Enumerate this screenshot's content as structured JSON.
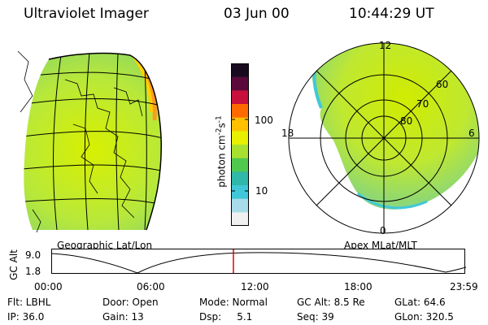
{
  "header": {
    "instrument": "Ultraviolet Imager",
    "date": "03 Jun 00",
    "time": "10:44:29 UT"
  },
  "colorbar": {
    "unit_label": "photon cm",
    "unit_sup1": "-2",
    "unit_mid": "s",
    "unit_sup2": "-1",
    "ticks": [
      "100",
      "10"
    ],
    "colors": [
      "#1a0a20",
      "#5a0a3a",
      "#c8103c",
      "#ff6a00",
      "#ffc000",
      "#e8f000",
      "#a8e030",
      "#50c850",
      "#30b8a8",
      "#40c8d8",
      "#a8dce8",
      "#f0f0f0"
    ]
  },
  "geo_panel": {
    "label": "Geographic Lat/Lon"
  },
  "polar_panel": {
    "label": "Apex MLat/MLT",
    "mlt_labels": {
      "top": "12",
      "left": "18",
      "right": "6",
      "bottom": "0"
    },
    "lat_labels": [
      "60",
      "70",
      "80"
    ]
  },
  "altitude_plot": {
    "ylabel": "GC Alt",
    "yticks": [
      "9.0",
      "1.8"
    ],
    "xticks": [
      "00:00",
      "06:00",
      "12:00",
      "18:00",
      "23:59"
    ],
    "marker_color": "#e00000"
  },
  "info": {
    "row1": [
      "Flt: LBHL",
      "Door: Open",
      "Mode: Normal",
      "GC Alt: 8.5 Re",
      "GLat: 64.6"
    ],
    "row2": [
      "IP: 36.0",
      "Gain: 13",
      "Dsp:     5.1",
      "Seq: 39",
      "GLon: 320.5"
    ]
  }
}
